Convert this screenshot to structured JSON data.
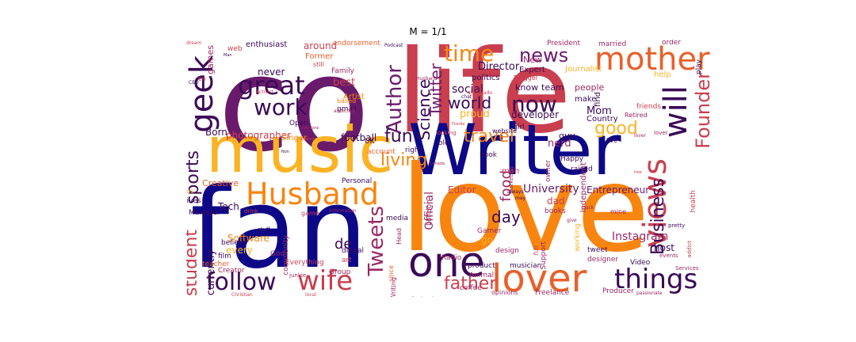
{
  "figure": {
    "title": "M = 1/1"
  },
  "wordcloud": {
    "palette": [
      "#0d0887",
      "#3b0a57",
      "#6a1a6b",
      "#9b2964",
      "#c93f4f",
      "#e8602a",
      "#f8850f",
      "#fbb324",
      "#f3df4d"
    ],
    "words": [
      {
        "text": "co"
      },
      {
        "text": "life"
      },
      {
        "text": "love"
      },
      {
        "text": "fan"
      },
      {
        "text": "Writer"
      },
      {
        "text": "music"
      },
      {
        "text": "Husband"
      },
      {
        "text": "views"
      },
      {
        "text": "one"
      },
      {
        "text": "lover"
      },
      {
        "text": "mother"
      },
      {
        "text": "geek"
      },
      {
        "text": "things"
      },
      {
        "text": "wife"
      },
      {
        "text": "follow"
      },
      {
        "text": "Tweets"
      },
      {
        "text": "great"
      },
      {
        "text": "work"
      },
      {
        "text": "Author"
      },
      {
        "text": "now"
      },
      {
        "text": "will"
      },
      {
        "text": "Founder"
      },
      {
        "text": "time"
      },
      {
        "text": "news"
      },
      {
        "text": "fun"
      },
      {
        "text": "travel"
      },
      {
        "text": "living"
      },
      {
        "text": "world"
      },
      {
        "text": "good"
      },
      {
        "text": "Business"
      },
      {
        "text": "student"
      },
      {
        "text": "sports"
      },
      {
        "text": "father"
      },
      {
        "text": "Science"
      },
      {
        "text": "Twitter"
      },
      {
        "text": "day"
      },
      {
        "text": "food"
      },
      {
        "text": "University"
      },
      {
        "text": "Instagram"
      },
      {
        "text": "Director"
      },
      {
        "text": "social"
      },
      {
        "text": "Mom"
      },
      {
        "text": "proud"
      },
      {
        "text": "Software"
      },
      {
        "text": "photographer"
      },
      {
        "text": "football"
      },
      {
        "text": "Editor"
      },
      {
        "text": "Official"
      },
      {
        "text": "Entrepreneur"
      },
      {
        "text": "every"
      },
      {
        "text": "currently"
      },
      {
        "text": "Creative"
      },
      {
        "text": "developer"
      },
      {
        "text": "guy"
      },
      {
        "text": "host"
      },
      {
        "text": "dad"
      },
      {
        "text": "Tech"
      },
      {
        "text": "Born"
      },
      {
        "text": "best"
      },
      {
        "text": "never"
      },
      {
        "text": "enthusiast"
      },
      {
        "text": "around"
      },
      {
        "text": "Former"
      },
      {
        "text": "games"
      },
      {
        "text": "Artist"
      },
      {
        "text": "Family"
      },
      {
        "text": "Expert"
      },
      {
        "text": "politics"
      },
      {
        "text": "know"
      },
      {
        "text": "team"
      },
      {
        "text": "New"
      },
      {
        "text": "President"
      },
      {
        "text": "married"
      },
      {
        "text": "order"
      },
      {
        "text": "play"
      },
      {
        "text": "Journalist"
      },
      {
        "text": "Blogger"
      },
      {
        "text": "people"
      },
      {
        "text": "make"
      },
      {
        "text": "find"
      },
      {
        "text": "friends"
      },
      {
        "text": "Retired"
      },
      {
        "text": "Country"
      },
      {
        "text": "help"
      },
      {
        "text": "nerd"
      },
      {
        "text": "girl"
      },
      {
        "text": "Singer"
      },
      {
        "text": "Open"
      },
      {
        "text": "gmail"
      },
      {
        "text": "Manager"
      },
      {
        "text": "web"
      },
      {
        "text": "UK"
      },
      {
        "text": "right"
      },
      {
        "text": "old"
      },
      {
        "text": "account"
      },
      {
        "text": "website"
      },
      {
        "text": "book"
      },
      {
        "text": "Happy"
      },
      {
        "text": "raised"
      },
      {
        "text": "Independent"
      },
      {
        "text": "owner"
      },
      {
        "text": "Personal"
      },
      {
        "text": "London"
      },
      {
        "text": "Marketing"
      },
      {
        "text": "Gamer"
      },
      {
        "text": "books"
      },
      {
        "text": "working"
      },
      {
        "text": "mine"
      },
      {
        "text": "health"
      },
      {
        "text": "lives"
      },
      {
        "text": "God"
      },
      {
        "text": "de"
      },
      {
        "text": "believe"
      },
      {
        "text": "film"
      },
      {
        "text": "Creator"
      },
      {
        "text": "teacher"
      },
      {
        "text": "Everything"
      },
      {
        "text": "community"
      },
      {
        "text": "digital"
      },
      {
        "text": "art"
      },
      {
        "text": "media"
      },
      {
        "text": "Head"
      },
      {
        "text": "Group"
      },
      {
        "text": "since"
      },
      {
        "text": "Writing"
      },
      {
        "text": "Radio"
      },
      {
        "text": "Animal"
      },
      {
        "text": "coffee"
      },
      {
        "text": "opinions"
      },
      {
        "text": "Freelance"
      },
      {
        "text": "Producer"
      },
      {
        "text": "product"
      },
      {
        "text": "musician"
      },
      {
        "text": "design"
      },
      {
        "text": "Support"
      },
      {
        "text": "tweet"
      },
      {
        "text": "designer"
      },
      {
        "text": "Video"
      },
      {
        "text": "Services"
      },
      {
        "text": "addict"
      },
      {
        "text": "pretty"
      },
      {
        "text": "events"
      },
      {
        "text": "go"
      },
      {
        "text": "game"
      },
      {
        "text": "drink"
      },
      {
        "text": "stuff"
      },
      {
        "text": "Information"
      },
      {
        "text": "always"
      },
      {
        "text": "may"
      },
      {
        "text": "back"
      },
      {
        "text": "give"
      },
      {
        "text": "looking"
      },
      {
        "text": "still"
      },
      {
        "text": "Podcast"
      },
      {
        "text": "dream"
      },
      {
        "text": "CEO"
      },
      {
        "text": "en"
      },
      {
        "text": "Man"
      },
      {
        "text": "junkie"
      },
      {
        "text": "local"
      },
      {
        "text": "Christian"
      },
      {
        "text": "professional"
      },
      {
        "text": "passionate"
      },
      {
        "text": "lover"
      },
      {
        "text": "full"
      },
      {
        "text": "endorsement"
      },
      {
        "text": "Activist"
      },
      {
        "text": "based"
      },
      {
        "text": "addicted"
      },
      {
        "text": "solutions"
      },
      {
        "text": "culture"
      },
      {
        "text": "Canada"
      },
      {
        "text": "TV"
      },
      {
        "text": "Non"
      },
      {
        "text": "aficionado"
      },
      {
        "text": "chat"
      },
      {
        "text": "free"
      },
      {
        "text": "Foodie"
      },
      {
        "text": "man"
      },
      {
        "text": "live"
      },
      {
        "text": "lover"
      },
      {
        "text": "us"
      },
      {
        "text": "Husband"
      }
    ]
  }
}
